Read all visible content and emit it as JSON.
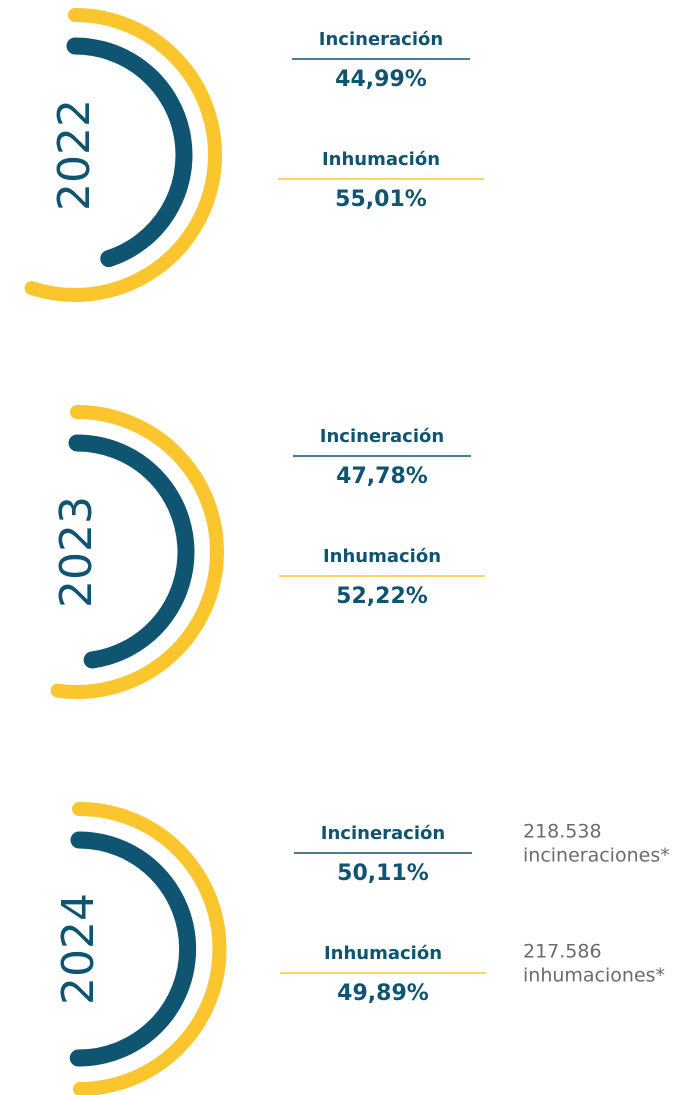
{
  "chart_data": [
    {
      "type": "radial",
      "title": "2022",
      "categories": [
        "Incineración",
        "Inhumación"
      ],
      "values": [
        44.99,
        55.01
      ],
      "value_labels": [
        "44,99%",
        "55,01%"
      ],
      "colors": [
        "#0f5470",
        "#fbc52e"
      ]
    },
    {
      "type": "radial",
      "title": "2023",
      "categories": [
        "Incineración",
        "Inhumación"
      ],
      "values": [
        47.78,
        52.22
      ],
      "value_labels": [
        "47,78%",
        "52,22%"
      ],
      "colors": [
        "#0f5470",
        "#fbc52e"
      ]
    },
    {
      "type": "radial",
      "title": "2024",
      "categories": [
        "Incineración",
        "Inhumación"
      ],
      "values": [
        50.11,
        49.89
      ],
      "value_labels": [
        "50,11%",
        "49,89%"
      ],
      "colors": [
        "#0f5470",
        "#fbc52e"
      ],
      "counts": [
        218538,
        217586
      ],
      "count_labels": [
        "218.538",
        "217.586"
      ],
      "count_texts": [
        "incineraciones*",
        "inhumaciones*"
      ]
    }
  ]
}
